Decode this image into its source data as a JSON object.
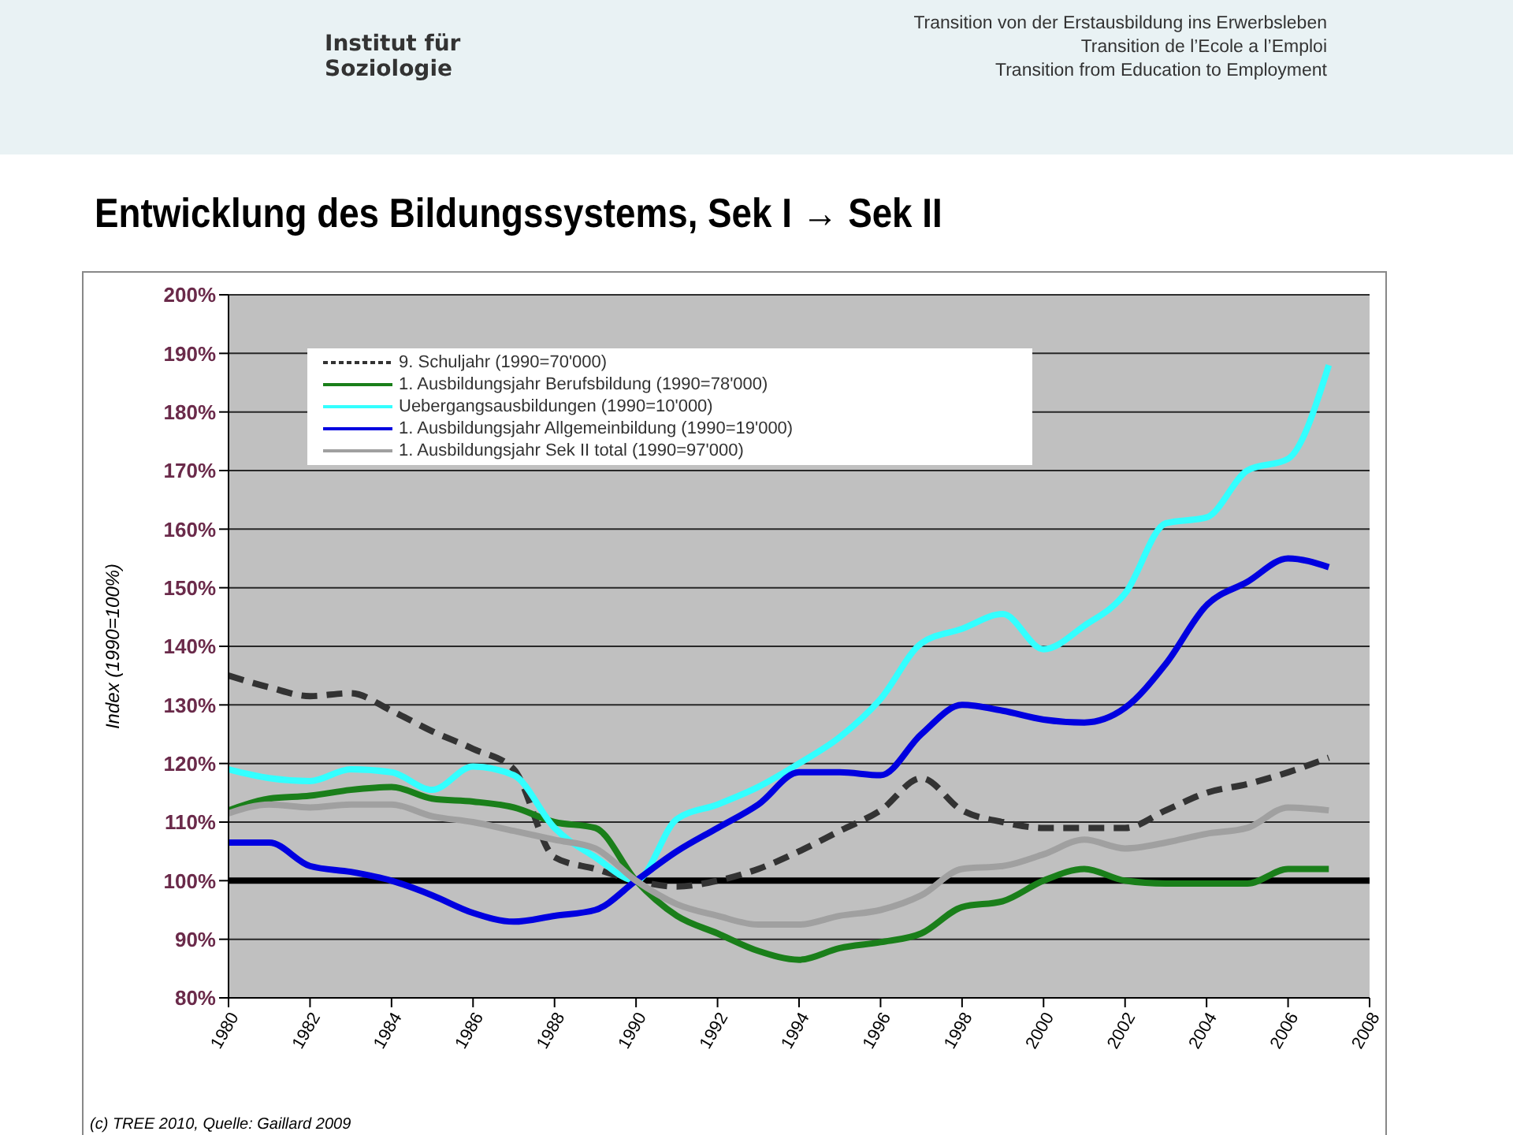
{
  "chart_data": {
    "type": "line",
    "title": "Entwicklung des Bildungssystems, Sek I → Sek II",
    "ylabel": "Index (1990=100%)",
    "annotations": [
      "Institut für Soziologie",
      "Transition von der Erstausbildung ins Erwerbsleben",
      "Transition de l’Ecole a l’Emploi",
      "Transition from Education to Employment",
      "(c) TREE 2010, Quelle: Gaillard 2009"
    ],
    "x": [
      1980,
      1981,
      1982,
      1983,
      1984,
      1985,
      1986,
      1987,
      1988,
      1989,
      1990,
      1991,
      1992,
      1993,
      1994,
      1995,
      1996,
      1997,
      1998,
      1999,
      2000,
      2001,
      2002,
      2003,
      2004,
      2005,
      2006,
      2007
    ],
    "series": [
      {
        "name": "9. Schuljahr (1990=70'000)",
        "color": "#333333",
        "line_style": "dashed",
        "values": [
          135,
          133,
          131.5,
          132,
          129,
          125.5,
          122.5,
          119,
          104,
          102,
          100,
          99,
          100,
          102,
          105,
          108.5,
          112,
          117.5,
          112,
          110,
          109,
          109,
          109,
          112,
          115,
          116.5,
          118.5,
          121
        ]
      },
      {
        "name": "1. Ausbildungsjahr Berufsbildung (1990=78'000)",
        "color": "#1a7f1a",
        "values": [
          112,
          114,
          114.5,
          115.5,
          116,
          114,
          113.5,
          112.5,
          110,
          109,
          100,
          94,
          91,
          88,
          86.5,
          88.5,
          89.5,
          91,
          95.5,
          96.5,
          100,
          102,
          100,
          99.5,
          99.5,
          99.5,
          102,
          102
        ]
      },
      {
        "name": "Uebergangsausbildungen (1990=10'000)",
        "color": "#33ffff",
        "values": [
          119,
          117.5,
          117,
          119,
          118.5,
          115.5,
          119.5,
          118,
          109,
          104,
          100,
          110.5,
          113,
          116,
          120,
          124.5,
          131,
          140.5,
          143,
          145.5,
          139.5,
          143.5,
          149,
          161,
          162,
          170,
          172,
          188
        ]
      },
      {
        "name": "1. Ausbildungsjahr Allgemeinbildung (1990=19'000)",
        "color": "#0000e0",
        "values": [
          106.5,
          106.5,
          102.5,
          101.5,
          100,
          97.5,
          94.5,
          93,
          94,
          95,
          100,
          105,
          109,
          113,
          118.5,
          118.5,
          118,
          125,
          130,
          129,
          127.5,
          127,
          129.5,
          137,
          147,
          151,
          155,
          153.5
        ]
      },
      {
        "name": "1. Ausbildungsjahr Sek II total (1990=97'000)",
        "color": "#a0a0a0",
        "values": [
          111.5,
          113,
          112.5,
          113,
          113,
          111,
          110,
          108.5,
          107,
          105.5,
          100,
          96,
          94,
          92.5,
          92.5,
          94,
          95,
          97.5,
          102,
          102.5,
          104.5,
          107,
          105.5,
          106.5,
          108,
          109,
          112.5,
          112
        ]
      }
    ],
    "xlim": [
      1980,
      2008
    ],
    "xticks": [
      1980,
      1982,
      1984,
      1986,
      1988,
      1990,
      1992,
      1994,
      1996,
      1998,
      2000,
      2002,
      2004,
      2006,
      2008
    ],
    "ylim": [
      80,
      200
    ],
    "yticks": [
      {
        "value": 80,
        "label": "80%"
      },
      {
        "value": 90,
        "label": "90%"
      },
      {
        "value": 100,
        "label": "100%"
      },
      {
        "value": 110,
        "label": "110%"
      },
      {
        "value": 120,
        "label": "120%"
      },
      {
        "value": 130,
        "label": "130%"
      },
      {
        "value": 140,
        "label": "140%"
      },
      {
        "value": 150,
        "label": "150%"
      },
      {
        "value": 160,
        "label": "160%"
      },
      {
        "value": 170,
        "label": "170%"
      },
      {
        "value": 180,
        "label": "180%"
      },
      {
        "value": 190,
        "label": "190%"
      },
      {
        "value": 200,
        "label": "200%"
      }
    ],
    "ref_lines": [
      {
        "axis": "y",
        "value": 100,
        "color": "#000000"
      }
    ],
    "grid": "y",
    "legend": "top left"
  }
}
